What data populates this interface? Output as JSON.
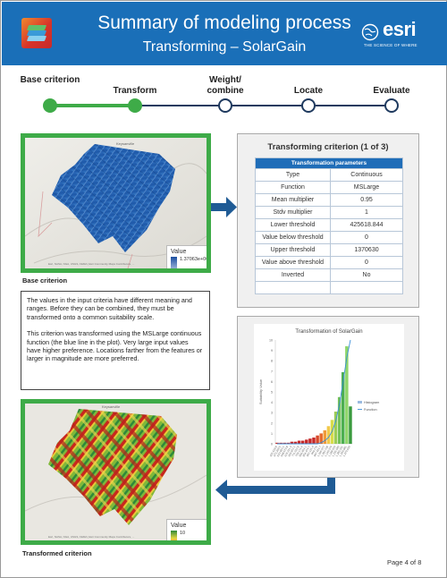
{
  "header": {
    "title": "Summary of modeling process",
    "subtitle": "Transforming – SolarGain",
    "logo_icon": "layers-icon",
    "brand": "esri",
    "brand_tagline": "THE SCIENCE OF WHERE",
    "color": "#1a6fb8"
  },
  "steps": [
    {
      "label": "Base criterion",
      "status": "done"
    },
    {
      "label": "Transform",
      "status": "done"
    },
    {
      "label": "Weight/ combine",
      "status": "pending"
    },
    {
      "label": "Locate",
      "status": "pending"
    },
    {
      "label": "Evaluate",
      "status": "pending"
    }
  ],
  "base_map": {
    "caption": "Base criterion",
    "legend_title": "Value",
    "legend_high": "1.37063e+06",
    "legend_low": "425619",
    "place_label": "Keysanville",
    "attribution": "Esri, NASA, NGA, USGS, FEMA | Esri Community Maps Contributors, ..."
  },
  "description": {
    "para1": "The values in the input criteria have different meaning and ranges. Before they can be combined, they must be transformed onto a common suitability scale.",
    "para2": "This criterion was transformed using the MSLarge continuous function (the blue line in the plot). Very large input values have higher preference. Locations farther from the features or larger in magnitude are more preferred."
  },
  "transformed_map": {
    "caption": "Transformed criterion",
    "legend_title": "Value",
    "legend_high": "10",
    "legend_low": "1",
    "place_label": "Keysanville",
    "attribution": "Esri, NASA, NGA, USGS, FEMA | Esri Community Maps Contributors, ..."
  },
  "criterion": {
    "title": "Transforming criterion (1 of 3)",
    "table_header": "Transformation parameters",
    "rows": [
      {
        "k": "Type",
        "v": "Continuous"
      },
      {
        "k": "Function",
        "v": "MSLarge"
      },
      {
        "k": "Mean multiplier",
        "v": "0.95"
      },
      {
        "k": "Stdv multiplier",
        "v": "1"
      },
      {
        "k": "Lower threshold",
        "v": "425618.844"
      },
      {
        "k": "Value below threshold",
        "v": "0"
      },
      {
        "k": "Upper threshold",
        "v": "1370630"
      },
      {
        "k": "Value above threshold",
        "v": "0"
      },
      {
        "k": "Inverted",
        "v": "No"
      },
      {
        "k": "",
        "v": ""
      }
    ]
  },
  "chart_data": {
    "type": "bar",
    "title": "Transformation of SolarGain",
    "ylabel": "Suitability Value",
    "xlabel": "",
    "ylim": [
      0,
      10
    ],
    "y_ticks": [
      "10",
      "9",
      "8",
      "7",
      "6",
      "5",
      "4",
      "3",
      "2",
      "1",
      "0"
    ],
    "x_ticks": [
      "425,618.8",
      "473,269.5",
      "520,920.1",
      "568,570.8",
      "616,221.4",
      "663,872.1",
      "711,522.8",
      "759,173.4",
      "806,824.1",
      "854,474.7",
      "902,125.4",
      "949,776",
      "997,426.7",
      "1,045,077",
      "1,092,728",
      "1,140,379",
      "1,188,029",
      "1,235,680",
      "1,283,331",
      "1,330,981",
      "1,370,630"
    ],
    "legend": [
      "Histogram",
      "Function"
    ],
    "legend_position": "right",
    "series": [
      {
        "name": "Histogram",
        "type": "bar",
        "values": [
          0.1,
          0.1,
          0.1,
          0.1,
          0.2,
          0.2,
          0.3,
          0.3,
          0.4,
          0.5,
          0.6,
          0.8,
          1.0,
          1.3,
          1.7,
          2.3,
          3.1,
          4.5,
          6.9,
          9.4,
          3.6
        ],
        "colors": [
          "#c62828",
          "#c62828",
          "#c62828",
          "#c62828",
          "#c62828",
          "#c62828",
          "#c62828",
          "#c62828",
          "#c62828",
          "#c62828",
          "#c62828",
          "#d84a2a",
          "#e56a2c",
          "#ef9a3a",
          "#f2c94a",
          "#d8dc4a",
          "#9ccc55",
          "#74c159",
          "#4caf50",
          "#8fd66a",
          "#3a9a3f"
        ]
      },
      {
        "name": "Function",
        "type": "line",
        "color": "#3a8fd8",
        "values": [
          0.0,
          0.0,
          0.0,
          0.0,
          0.0,
          0.0,
          0.0,
          0.0,
          0.0,
          0.0,
          0.0,
          0.0,
          0.1,
          0.3,
          0.6,
          1.2,
          2.2,
          3.8,
          6.0,
          8.3,
          10.0
        ]
      }
    ],
    "colors": {
      "histogram_legend": "#9bbbe0",
      "function": "#3a8fd8"
    }
  },
  "footer": {
    "page": "Page 4 of 8"
  },
  "colors": {
    "accent_green": "#3eab48",
    "arrow_blue": "#1f5b95",
    "step_dark": "#1f3a5f"
  }
}
